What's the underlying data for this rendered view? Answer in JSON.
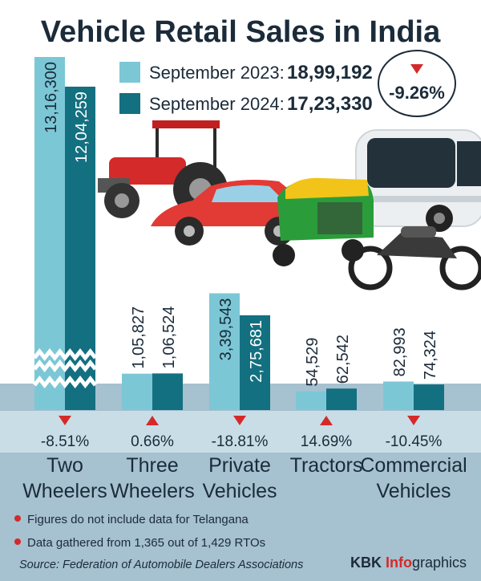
{
  "title": "Vehicle Retail Sales in India",
  "legend": {
    "items": [
      {
        "label": "September 2023:",
        "value": "18,99,192",
        "color": "#7cc7d6"
      },
      {
        "label": "September 2024:",
        "value": "17,23,330",
        "color": "#137080"
      }
    ],
    "change": "-9.26%"
  },
  "colors": {
    "sep2023": "#7cc7d6",
    "sep2024": "#137080",
    "down": "#d42a2a",
    "up": "#d42a2a",
    "band": "#a6c1cf",
    "pct_band": "#c9dde6"
  },
  "chart_data": {
    "type": "bar",
    "title": "Vehicle Retail Sales in India",
    "categories": [
      "Two Wheelers",
      "Three Wheelers",
      "Private Vehicles",
      "Tractors",
      "Commercial Vehicles"
    ],
    "series": [
      {
        "name": "September 2023",
        "values": [
          1316300,
          105827,
          339543,
          54529,
          82993
        ]
      },
      {
        "name": "September 2024",
        "values": [
          1204259,
          106524,
          275681,
          62542,
          74324
        ]
      }
    ],
    "value_labels": [
      [
        "13,16,300",
        "12,04,259"
      ],
      [
        "1,05,827",
        "1,06,524"
      ],
      [
        "3,39,543",
        "2,75,681"
      ],
      [
        "54,529",
        "62,542"
      ],
      [
        "82,993",
        "74,324"
      ]
    ],
    "changes": [
      {
        "text": "-8.51%",
        "direction": "down"
      },
      {
        "text": "0.66%",
        "direction": "up"
      },
      {
        "text": "-18.81%",
        "direction": "down"
      },
      {
        "text": "14.69%",
        "direction": "up"
      },
      {
        "text": "-10.45%",
        "direction": "down"
      }
    ],
    "category_lines": [
      [
        "Two",
        "Wheelers"
      ],
      [
        "Three",
        "Wheelers"
      ],
      [
        "Private",
        "Vehicles"
      ],
      [
        "Tractors"
      ],
      [
        "Commercial",
        "Vehicles"
      ]
    ],
    "axis_break": "Two Wheelers bars are truncated",
    "grid": false
  },
  "notes": [
    "Figures do not include data for Telangana",
    "Data gathered from 1,365 out of 1,429 RTOs"
  ],
  "source": "Source: Federation of Automobile Dealers Associations",
  "brand": {
    "part1": "KBK ",
    "part2": "Info",
    "part3": "graphics"
  }
}
